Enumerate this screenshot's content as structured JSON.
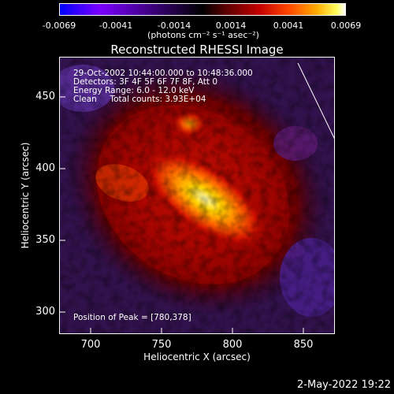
{
  "colorbar": {
    "ticks": [
      "-0.0069",
      "-0.0041",
      "-0.0014",
      "0.0014",
      "0.0041",
      "0.0069"
    ],
    "unit_label": "(photons cm⁻² s⁻¹ asec⁻²)"
  },
  "chart_data": {
    "type": "heatmap",
    "title": "Reconstructed RHESSI Image",
    "xlabel": "Heliocentric X (arcsec)",
    "ylabel": "Heliocentric Y (arcsec)",
    "xlim": [
      678,
      870
    ],
    "ylim": [
      287,
      480
    ],
    "x_ticks": [
      "700",
      "750",
      "800",
      "850"
    ],
    "y_ticks": [
      "300",
      "350",
      "400",
      "450"
    ],
    "colormap": "blue-black-red-yellow-white",
    "value_range": [
      -0.0069,
      0.0069
    ],
    "peak_position": [
      780,
      378
    ],
    "annotations": {
      "time_range": "29-Oct-2002 10:44:00.000 to 10:48:36.000",
      "detectors": "Detectors: 3F 4F 5F 6F 7F 8F, Att 0",
      "energy": "Energy Range: 6.0 - 12.0 keV",
      "method": "Clean     Total counts: 3.93E+04",
      "peak": "Position of Peak = [780,378]"
    }
  },
  "footer": {
    "date": "2-May-2022 19:22"
  }
}
